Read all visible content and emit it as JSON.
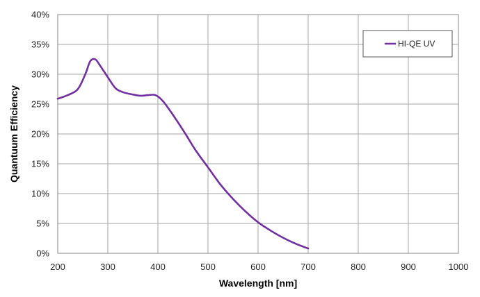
{
  "chart_data": {
    "type": "line",
    "title": "",
    "xlabel": "Wavelength [nm]",
    "ylabel": "Quantuum Efficiency",
    "xlim": [
      200,
      1000
    ],
    "ylim": [
      0,
      40
    ],
    "xticks": [
      200,
      300,
      400,
      500,
      600,
      700,
      800,
      900,
      1000
    ],
    "yticks": [
      0,
      5,
      10,
      15,
      20,
      25,
      30,
      35,
      40
    ],
    "ytick_labels": [
      "0%",
      "5%",
      "10%",
      "15%",
      "20%",
      "25%",
      "30%",
      "35%",
      "40%"
    ],
    "grid": true,
    "legend": {
      "position": "top-right"
    },
    "series": [
      {
        "name": "HI-QE UV",
        "color": "#7030A0",
        "x": [
          200,
          220,
          240,
          255,
          265,
          275,
          285,
          300,
          315,
          330,
          350,
          365,
          380,
          395,
          410,
          430,
          455,
          475,
          500,
          525,
          550,
          575,
          600,
          625,
          650,
          675,
          700
        ],
        "y": [
          25.9,
          26.5,
          27.5,
          30.0,
          32.2,
          32.5,
          31.4,
          29.5,
          27.7,
          27.0,
          26.6,
          26.4,
          26.5,
          26.5,
          25.5,
          23.2,
          20.0,
          17.3,
          14.4,
          11.5,
          9.1,
          7.0,
          5.2,
          3.8,
          2.6,
          1.6,
          0.8
        ]
      }
    ]
  }
}
